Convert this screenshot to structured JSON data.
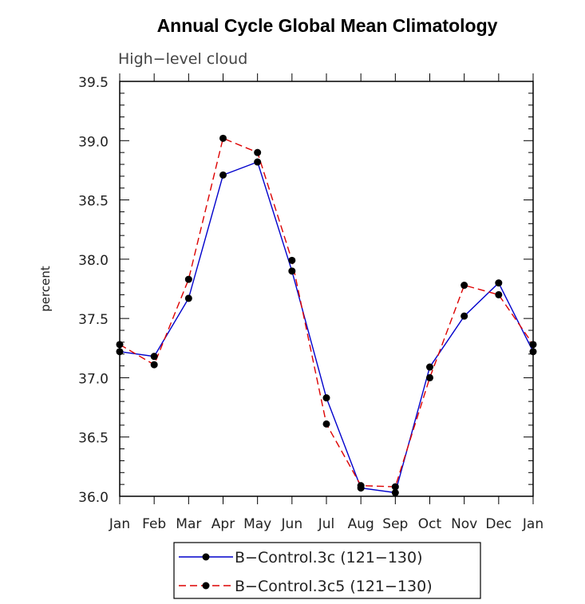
{
  "chart_data": {
    "type": "line",
    "title": "Annual Cycle Global Mean Climatology",
    "subtitle": "High−level cloud",
    "xlabel": "",
    "ylabel": "percent",
    "categories": [
      "Jan",
      "Feb",
      "Mar",
      "Apr",
      "May",
      "Jun",
      "Jul",
      "Aug",
      "Sep",
      "Oct",
      "Nov",
      "Dec",
      "Jan"
    ],
    "ylim": [
      36.0,
      39.5
    ],
    "yticks": [
      "36.0",
      "36.5",
      "37.0",
      "37.5",
      "38.0",
      "38.5",
      "39.0",
      "39.5"
    ],
    "grid": false,
    "legend_position": "bottom",
    "series": [
      {
        "name": "B−Control.3c (121−130)",
        "color": "#0000cc",
        "dash": "solid",
        "values": [
          37.22,
          37.18,
          37.67,
          38.71,
          38.82,
          37.9,
          36.83,
          36.07,
          36.03,
          37.09,
          37.52,
          37.8,
          37.22
        ]
      },
      {
        "name": "B−Control.3c5 (121−130)",
        "color": "#dd0000",
        "dash": "dashed",
        "values": [
          37.28,
          37.11,
          37.83,
          39.02,
          38.9,
          37.99,
          36.61,
          36.09,
          36.08,
          37.0,
          37.78,
          37.7,
          37.28
        ]
      }
    ]
  }
}
